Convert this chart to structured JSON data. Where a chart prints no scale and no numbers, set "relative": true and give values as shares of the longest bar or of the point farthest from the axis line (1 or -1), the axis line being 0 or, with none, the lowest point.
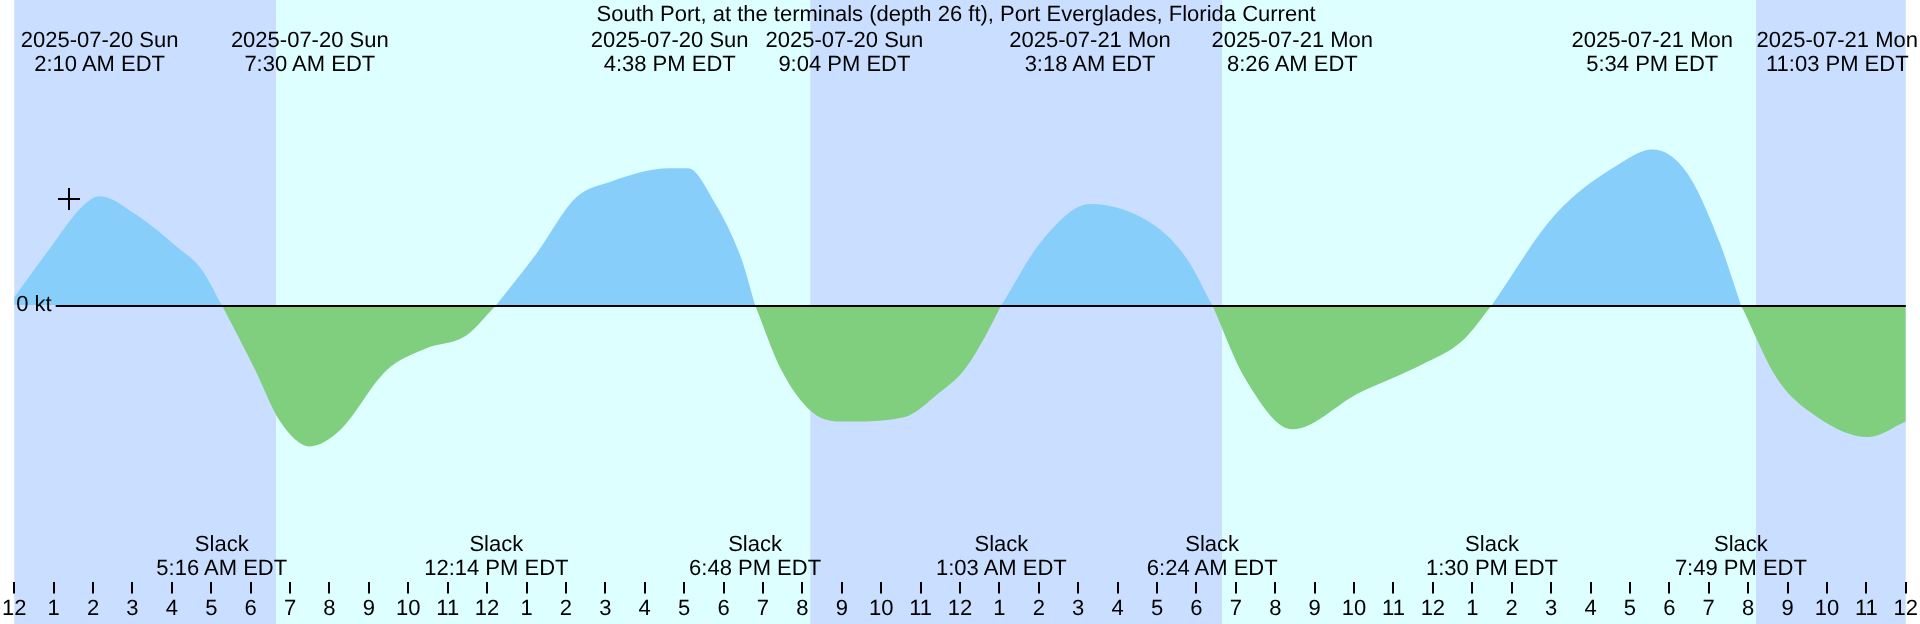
{
  "chart_data": {
    "type": "area",
    "title": "South Port, at the terminals (depth 26 ft), Port Everglades, Florida Current",
    "relative": true,
    "grid": false,
    "legend": false,
    "x": [
      "2025-07-20T00:00",
      "2025-07-20T00:57",
      "2025-07-20T01:45",
      "2025-07-20T02:10",
      "2025-07-20T03:06",
      "2025-07-20T04:06",
      "2025-07-20T04:45",
      "2025-07-20T05:16",
      "2025-07-20T06:06",
      "2025-07-20T06:45",
      "2025-07-20T07:30",
      "2025-07-20T08:15",
      "2025-07-20T09:27",
      "2025-07-20T10:27",
      "2025-07-20T11:27",
      "2025-07-20T12:14",
      "2025-07-20T13:15",
      "2025-07-20T14:15",
      "2025-07-20T15:06",
      "2025-07-20T16:38",
      "2025-07-20T17:06",
      "2025-07-20T17:45",
      "2025-07-20T18:27",
      "2025-07-20T18:48",
      "2025-07-20T19:27",
      "2025-07-20T20:15",
      "2025-07-20T21:04",
      "2025-07-20T22:36",
      "2025-07-20T23:27",
      "2025-07-21T00:06",
      "2025-07-21T00:36",
      "2025-07-21T01:03",
      "2025-07-21T02:06",
      "2025-07-21T03:18",
      "2025-07-21T04:57",
      "2025-07-21T05:45",
      "2025-07-21T06:24",
      "2025-07-21T07:15",
      "2025-07-21T08:26",
      "2025-07-21T10:06",
      "2025-07-21T11:45",
      "2025-07-21T12:45",
      "2025-07-21T13:30",
      "2025-07-21T15:06",
      "2025-07-21T16:45",
      "2025-07-21T17:34",
      "2025-07-21T18:27",
      "2025-07-21T19:15",
      "2025-07-21T19:49",
      "2025-07-21T20:45",
      "2025-07-21T21:45",
      "2025-07-21T23:03",
      "2025-07-22T00:00"
    ],
    "series": [
      {
        "color": "#87cefa",
        "values": [
          0.05,
          0.38,
          0.64,
          0.7,
          0.58,
          0.38,
          0.23,
          0,
          null,
          null,
          null,
          null,
          null,
          null,
          null,
          0,
          0.33,
          0.69,
          0.79,
          0.88,
          0.88,
          0.67,
          0.3,
          0,
          null,
          null,
          null,
          null,
          null,
          null,
          null,
          0,
          0.42,
          0.65,
          0.51,
          0.3,
          0,
          null,
          null,
          null,
          null,
          null,
          0,
          0.58,
          0.91,
          1,
          0.85,
          0.42,
          0,
          null,
          null,
          null,
          null
        ]
      },
      {
        "color": "#7fcf7f",
        "values": [
          null,
          null,
          null,
          null,
          null,
          null,
          null,
          0,
          -0.41,
          -0.75,
          -0.91,
          -0.81,
          -0.42,
          -0.28,
          -0.2,
          0,
          null,
          null,
          null,
          null,
          null,
          null,
          null,
          0,
          -0.41,
          -0.69,
          -0.75,
          -0.72,
          -0.57,
          -0.42,
          -0.22,
          0,
          null,
          null,
          null,
          null,
          0,
          -0.48,
          -0.8,
          -0.57,
          -0.38,
          -0.23,
          0,
          null,
          null,
          null,
          null,
          null,
          0,
          -0.48,
          -0.72,
          -0.85,
          -0.75
        ]
      }
    ],
    "xlim": [
      "2025-07-20T00:00",
      "2025-07-22T00:00"
    ],
    "xticks": [
      {
        "value": "2025-07-20T00:00",
        "label": "12"
      },
      {
        "value": "2025-07-20T01:00",
        "label": "1"
      },
      {
        "value": "2025-07-20T02:00",
        "label": "2"
      },
      {
        "value": "2025-07-20T03:00",
        "label": "3"
      },
      {
        "value": "2025-07-20T04:00",
        "label": "4"
      },
      {
        "value": "2025-07-20T05:00",
        "label": "5"
      },
      {
        "value": "2025-07-20T06:00",
        "label": "6"
      },
      {
        "value": "2025-07-20T07:00",
        "label": "7"
      },
      {
        "value": "2025-07-20T08:00",
        "label": "8"
      },
      {
        "value": "2025-07-20T09:00",
        "label": "9"
      },
      {
        "value": "2025-07-20T10:00",
        "label": "10"
      },
      {
        "value": "2025-07-20T11:00",
        "label": "11"
      },
      {
        "value": "2025-07-20T12:00",
        "label": "12"
      },
      {
        "value": "2025-07-20T13:00",
        "label": "1"
      },
      {
        "value": "2025-07-20T14:00",
        "label": "2"
      },
      {
        "value": "2025-07-20T15:00",
        "label": "3"
      },
      {
        "value": "2025-07-20T16:00",
        "label": "4"
      },
      {
        "value": "2025-07-20T17:00",
        "label": "5"
      },
      {
        "value": "2025-07-20T18:00",
        "label": "6"
      },
      {
        "value": "2025-07-20T19:00",
        "label": "7"
      },
      {
        "value": "2025-07-20T20:00",
        "label": "8"
      },
      {
        "value": "2025-07-20T21:00",
        "label": "9"
      },
      {
        "value": "2025-07-20T22:00",
        "label": "10"
      },
      {
        "value": "2025-07-20T23:00",
        "label": "11"
      },
      {
        "value": "2025-07-21T00:00",
        "label": "12"
      },
      {
        "value": "2025-07-21T01:00",
        "label": "1"
      },
      {
        "value": "2025-07-21T02:00",
        "label": "2"
      },
      {
        "value": "2025-07-21T03:00",
        "label": "3"
      },
      {
        "value": "2025-07-21T04:00",
        "label": "4"
      },
      {
        "value": "2025-07-21T05:00",
        "label": "5"
      },
      {
        "value": "2025-07-21T06:00",
        "label": "6"
      },
      {
        "value": "2025-07-21T07:00",
        "label": "7"
      },
      {
        "value": "2025-07-21T08:00",
        "label": "8"
      },
      {
        "value": "2025-07-21T09:00",
        "label": "9"
      },
      {
        "value": "2025-07-21T10:00",
        "label": "10"
      },
      {
        "value": "2025-07-21T11:00",
        "label": "11"
      },
      {
        "value": "2025-07-21T12:00",
        "label": "12"
      },
      {
        "value": "2025-07-21T13:00",
        "label": "1"
      },
      {
        "value": "2025-07-21T14:00",
        "label": "2"
      },
      {
        "value": "2025-07-21T15:00",
        "label": "3"
      },
      {
        "value": "2025-07-21T16:00",
        "label": "4"
      },
      {
        "value": "2025-07-21T17:00",
        "label": "5"
      },
      {
        "value": "2025-07-21T18:00",
        "label": "6"
      },
      {
        "value": "2025-07-21T19:00",
        "label": "7"
      },
      {
        "value": "2025-07-21T20:00",
        "label": "8"
      },
      {
        "value": "2025-07-21T21:00",
        "label": "9"
      },
      {
        "value": "2025-07-21T22:00",
        "label": "10"
      },
      {
        "value": "2025-07-21T23:00",
        "label": "11"
      },
      {
        "value": "2025-07-22T00:00",
        "label": "12"
      }
    ],
    "ref_lines": [
      {
        "axis": "y",
        "value": 0,
        "label": "0 kt",
        "color": "#000000"
      }
    ],
    "bands": [
      {
        "axis": "x",
        "from": "2025-07-20T00:00",
        "to": "2025-07-20T06:39",
        "color": "#cadfff"
      },
      {
        "axis": "x",
        "from": "2025-07-20T06:39",
        "to": "2025-07-20T20:12",
        "color": "#ddffff"
      },
      {
        "axis": "x",
        "from": "2025-07-20T20:12",
        "to": "2025-07-21T06:39",
        "color": "#cadfff"
      },
      {
        "axis": "x",
        "from": "2025-07-21T06:39",
        "to": "2025-07-21T20:12",
        "color": "#ddffff"
      },
      {
        "axis": "x",
        "from": "2025-07-21T20:12",
        "to": "2025-07-22T00:00",
        "color": "#cadfff"
      }
    ],
    "annotations": [
      "2025-07-20 Sun\n2:10 AM EDT",
      "2025-07-20 Sun\n7:30 AM EDT",
      "2025-07-20 Sun\n4:38 PM EDT",
      "2025-07-20 Sun\n9:04 PM EDT",
      "2025-07-21 Mon\n3:18 AM EDT",
      "2025-07-21 Mon\n8:26 AM EDT",
      "2025-07-21 Mon\n5:34 PM EDT",
      "2025-07-21 Mon\n11:03 PM EDT",
      "Slack\n5:16 AM EDT",
      "Slack\n12:14 PM EDT",
      "Slack\n6:48 PM EDT",
      "Slack\n1:03 AM EDT",
      "Slack\n6:24 AM EDT",
      "Slack\n1:30 PM EDT",
      "Slack\n7:49 PM EDT"
    ]
  }
}
